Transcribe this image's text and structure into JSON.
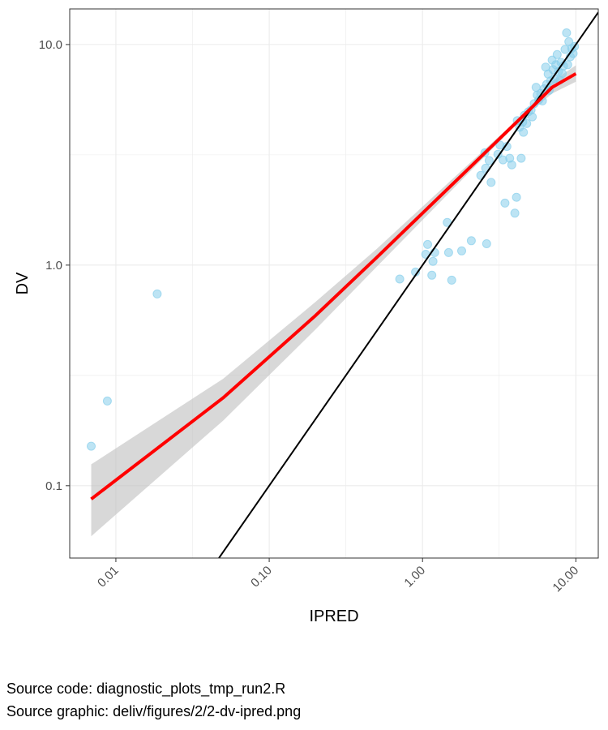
{
  "chart_data": {
    "type": "scatter",
    "xlabel": "IPRED",
    "ylabel": "DV",
    "x_scale": "log10",
    "y_scale": "log10",
    "xlim": [
      0.005,
      14.0
    ],
    "ylim": [
      0.047,
      14.5
    ],
    "x_ticks": [
      0.01,
      0.1,
      1.0,
      10.0
    ],
    "x_tick_labels": [
      "0.01",
      "0.10",
      "1.00",
      "10.00"
    ],
    "y_ticks": [
      0.1,
      1.0,
      10.0
    ],
    "y_tick_labels": [
      "0.1",
      "1.0",
      "10.0"
    ],
    "grid": true,
    "colors": {
      "points": "#87ceeb",
      "fit_line": "#ff0000",
      "confidence_band": "#bebebe",
      "identity_line": "#000000",
      "panel_border": "#333333",
      "grid": "#ebebeb"
    },
    "points": [
      {
        "x": 0.0069,
        "y": 0.151
      },
      {
        "x": 0.0088,
        "y": 0.242
      },
      {
        "x": 0.0186,
        "y": 0.74
      },
      {
        "x": 0.71,
        "y": 0.865
      },
      {
        "x": 0.9,
        "y": 0.93
      },
      {
        "x": 1.05,
        "y": 1.12
      },
      {
        "x": 1.08,
        "y": 1.24
      },
      {
        "x": 1.15,
        "y": 0.9
      },
      {
        "x": 1.17,
        "y": 1.04
      },
      {
        "x": 1.2,
        "y": 1.14
      },
      {
        "x": 1.45,
        "y": 1.56
      },
      {
        "x": 1.48,
        "y": 1.14
      },
      {
        "x": 1.55,
        "y": 0.855
      },
      {
        "x": 1.8,
        "y": 1.16
      },
      {
        "x": 2.08,
        "y": 1.29
      },
      {
        "x": 2.4,
        "y": 2.55
      },
      {
        "x": 2.55,
        "y": 3.23
      },
      {
        "x": 2.58,
        "y": 2.75
      },
      {
        "x": 2.62,
        "y": 1.25
      },
      {
        "x": 2.72,
        "y": 2.98
      },
      {
        "x": 2.8,
        "y": 2.37
      },
      {
        "x": 3.1,
        "y": 3.18
      },
      {
        "x": 3.2,
        "y": 3.5
      },
      {
        "x": 3.35,
        "y": 3.0
      },
      {
        "x": 3.45,
        "y": 1.91
      },
      {
        "x": 3.55,
        "y": 3.45
      },
      {
        "x": 3.7,
        "y": 3.05
      },
      {
        "x": 3.82,
        "y": 2.85
      },
      {
        "x": 4.0,
        "y": 1.72
      },
      {
        "x": 4.1,
        "y": 2.03
      },
      {
        "x": 4.15,
        "y": 4.52
      },
      {
        "x": 4.3,
        "y": 4.22
      },
      {
        "x": 4.4,
        "y": 3.05
      },
      {
        "x": 4.5,
        "y": 4.45
      },
      {
        "x": 4.55,
        "y": 4.0
      },
      {
        "x": 4.62,
        "y": 4.78
      },
      {
        "x": 4.78,
        "y": 4.38
      },
      {
        "x": 4.9,
        "y": 4.95
      },
      {
        "x": 5.1,
        "y": 5.05
      },
      {
        "x": 5.2,
        "y": 4.7
      },
      {
        "x": 5.35,
        "y": 5.4
      },
      {
        "x": 5.5,
        "y": 6.4
      },
      {
        "x": 5.6,
        "y": 5.9
      },
      {
        "x": 5.72,
        "y": 5.6
      },
      {
        "x": 5.9,
        "y": 6.0
      },
      {
        "x": 6.05,
        "y": 5.55
      },
      {
        "x": 6.2,
        "y": 6.3
      },
      {
        "x": 6.35,
        "y": 7.9
      },
      {
        "x": 6.45,
        "y": 6.6
      },
      {
        "x": 6.6,
        "y": 7.35
      },
      {
        "x": 6.7,
        "y": 6.2
      },
      {
        "x": 6.85,
        "y": 6.85
      },
      {
        "x": 7.0,
        "y": 8.5
      },
      {
        "x": 7.1,
        "y": 7.7
      },
      {
        "x": 7.25,
        "y": 7.0
      },
      {
        "x": 7.4,
        "y": 8.1
      },
      {
        "x": 7.55,
        "y": 9.0
      },
      {
        "x": 7.7,
        "y": 7.55
      },
      {
        "x": 7.85,
        "y": 6.9
      },
      {
        "x": 8.0,
        "y": 8.3
      },
      {
        "x": 8.15,
        "y": 7.4
      },
      {
        "x": 8.3,
        "y": 8.0
      },
      {
        "x": 8.5,
        "y": 9.5
      },
      {
        "x": 8.7,
        "y": 11.3
      },
      {
        "x": 8.85,
        "y": 8.1
      },
      {
        "x": 9.0,
        "y": 10.3
      },
      {
        "x": 9.2,
        "y": 8.8
      },
      {
        "x": 9.4,
        "y": 9.6
      },
      {
        "x": 9.6,
        "y": 9.1
      },
      {
        "x": 9.8,
        "y": 9.8
      }
    ],
    "fit_line": {
      "x": [
        0.0069,
        0.05,
        0.2,
        0.5,
        1.0,
        2.0,
        4.0,
        5.0,
        7.0,
        10.0
      ],
      "y": [
        0.087,
        0.25,
        0.59,
        1.08,
        1.72,
        2.74,
        4.37,
        5.07,
        6.4,
        7.38
      ],
      "ci_lower": [
        0.059,
        0.197,
        0.51,
        0.98,
        1.6,
        2.62,
        4.28,
        4.93,
        6.0,
        6.78
      ],
      "ci_upper": [
        0.125,
        0.305,
        0.68,
        1.18,
        1.84,
        2.87,
        4.46,
        5.22,
        6.8,
        8.05
      ]
    },
    "identity_line": {
      "x": [
        0.046,
        14.0
      ],
      "y": [
        0.046,
        14.0
      ]
    }
  },
  "caption": {
    "line1": "Source code: diagnostic_plots_tmp_run2.R",
    "line2": "Source graphic: deliv/figures/2/2-dv-ipred.png"
  }
}
